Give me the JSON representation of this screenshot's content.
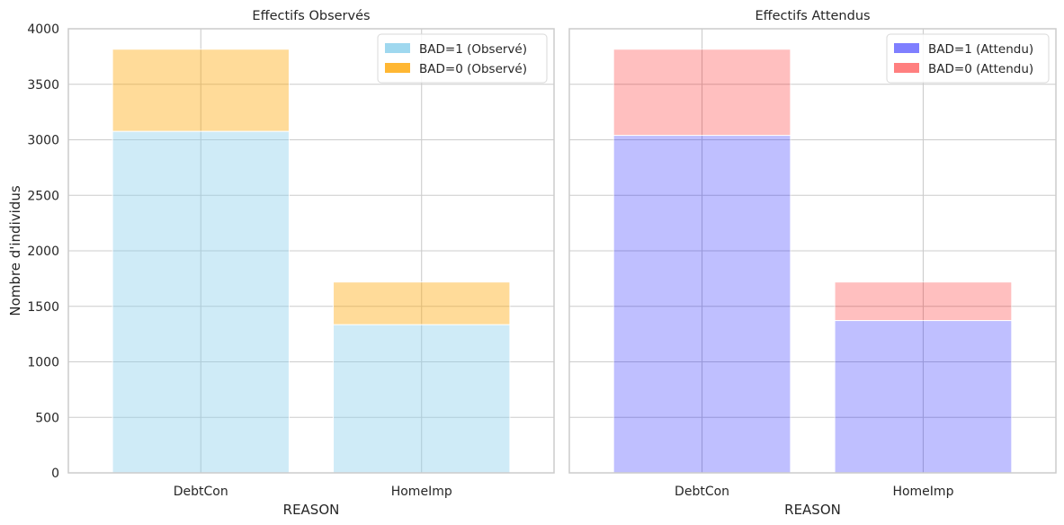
{
  "chart_data": [
    {
      "type": "bar",
      "stacked": true,
      "title": "Effectifs Observés",
      "xlabel": "REASON",
      "ylabel": "Nombre d'individus",
      "categories": [
        "DebtCon",
        "HomeImp"
      ],
      "ylim": [
        0,
        4000
      ],
      "yticks": [
        0,
        500,
        1000,
        1500,
        2000,
        2500,
        3000,
        3500,
        4000
      ],
      "grid": true,
      "legend_position": "top-right",
      "series": [
        {
          "name": "BAD=1 (Observé)",
          "values": [
            3076,
            1335
          ],
          "color": "#87ceeb"
        },
        {
          "name": "BAD=0 (Observé)",
          "values": [
            740,
            384
          ],
          "color": "#ffa500"
        }
      ]
    },
    {
      "type": "bar",
      "stacked": true,
      "title": "Effectifs Attendus",
      "xlabel": "REASON",
      "ylabel": "",
      "categories": [
        "DebtCon",
        "HomeImp"
      ],
      "ylim": [
        0,
        4000
      ],
      "yticks": [
        0,
        500,
        1000,
        1500,
        2000,
        2500,
        3000,
        3500,
        4000
      ],
      "grid": true,
      "legend_position": "top-right",
      "series": [
        {
          "name": "BAD=1 (Attendu)",
          "values": [
            3040,
            1372
          ],
          "color": "#0000ff"
        },
        {
          "name": "BAD=0 (Attendu)",
          "values": [
            776,
            347
          ],
          "color": "#ff0000"
        }
      ]
    }
  ]
}
